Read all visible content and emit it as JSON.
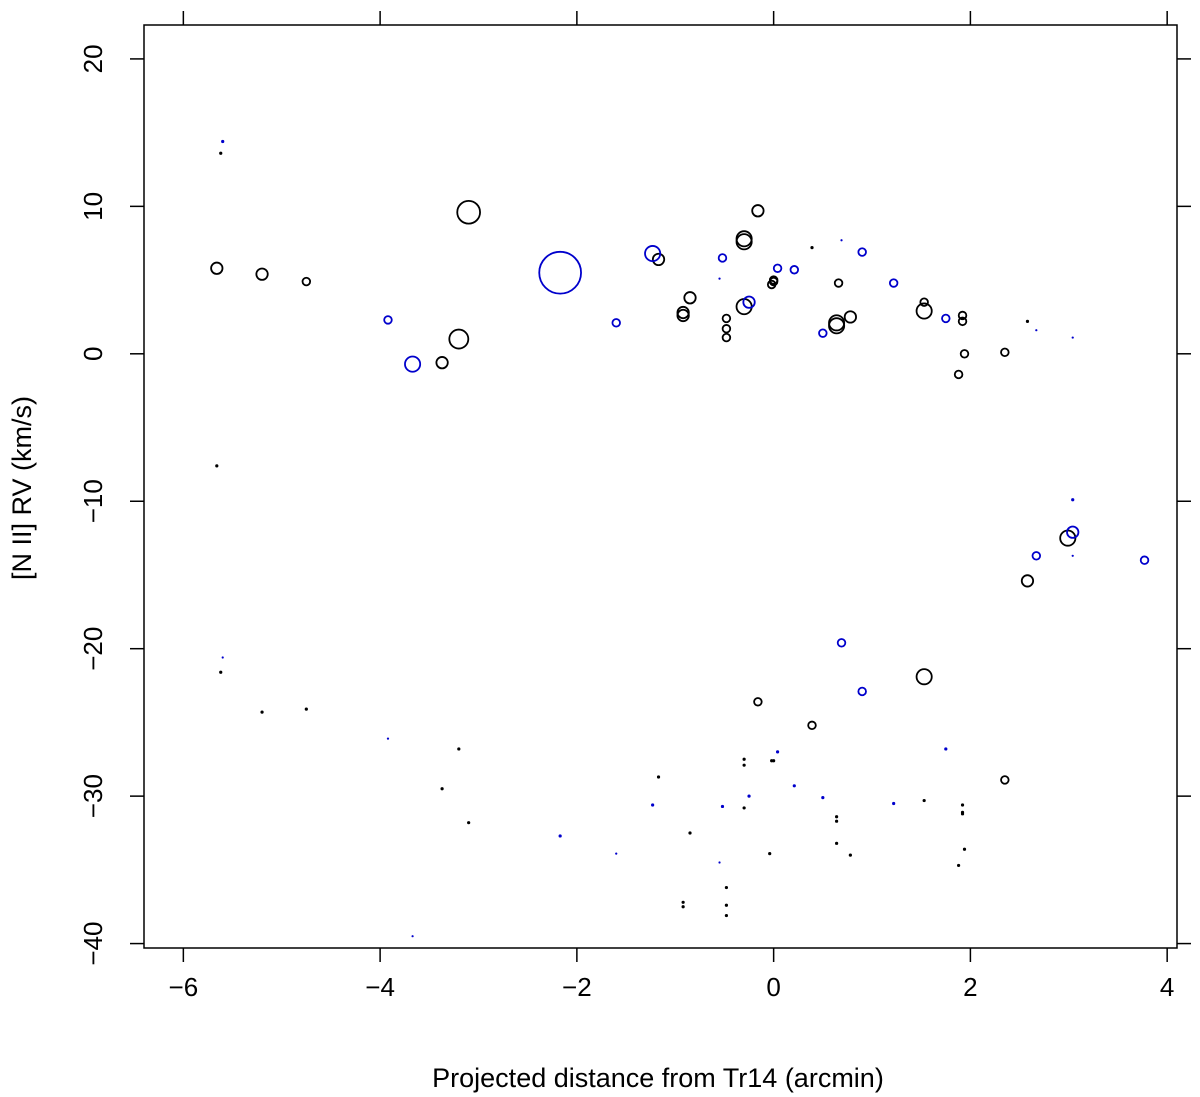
{
  "chart_data": {
    "type": "scatter",
    "title": "",
    "xlabel": "Projected distance from Tr14 (arcmin)",
    "ylabel": "[N II] RV (km/s)",
    "xlim": [
      -6.4,
      4.1
    ],
    "ylim": [
      -40.3,
      22.3
    ],
    "xticks": [
      -6,
      -4,
      -2,
      0,
      2,
      4
    ],
    "yticks": [
      -40,
      -30,
      -20,
      -10,
      0,
      10,
      20
    ],
    "grid": false,
    "legend": "none",
    "series": [
      {
        "color": "#000000",
        "points": [
          [
            -5.62,
            13.6,
            1
          ],
          [
            -5.66,
            5.8,
            3
          ],
          [
            -5.2,
            5.4,
            3
          ],
          [
            -4.75,
            4.9,
            2
          ],
          [
            -5.66,
            -7.6,
            1
          ],
          [
            -5.62,
            -21.6,
            1
          ],
          [
            -5.2,
            -24.3,
            1
          ],
          [
            -4.75,
            -24.1,
            1
          ],
          [
            -3.1,
            9.6,
            6
          ],
          [
            -3.2,
            1.0,
            5
          ],
          [
            -3.37,
            -0.6,
            3
          ],
          [
            -3.2,
            -26.8,
            1
          ],
          [
            -3.37,
            -29.5,
            1
          ],
          [
            -3.1,
            -31.8,
            1
          ],
          [
            -1.17,
            6.4,
            3
          ],
          [
            -0.85,
            3.8,
            3
          ],
          [
            -0.92,
            2.8,
            3
          ],
          [
            -0.92,
            2.6,
            3
          ],
          [
            -0.48,
            2.4,
            2
          ],
          [
            -0.48,
            1.7,
            2
          ],
          [
            -0.48,
            1.1,
            2
          ],
          [
            -0.3,
            7.8,
            4
          ],
          [
            -0.3,
            7.6,
            4
          ],
          [
            -0.3,
            3.2,
            4
          ],
          [
            -0.16,
            9.7,
            3
          ],
          [
            0.0,
            4.9,
            2
          ],
          [
            0.0,
            5.0,
            2
          ],
          [
            -0.02,
            4.7,
            2
          ],
          [
            0.39,
            7.2,
            1
          ],
          [
            0.66,
            4.8,
            2
          ],
          [
            0.64,
            2.1,
            4
          ],
          [
            0.64,
            1.9,
            4
          ],
          [
            0.78,
            2.5,
            3
          ],
          [
            1.53,
            3.5,
            2
          ],
          [
            1.53,
            2.9,
            4
          ],
          [
            1.88,
            -1.4,
            2
          ],
          [
            1.92,
            2.6,
            2
          ],
          [
            1.92,
            2.2,
            2
          ],
          [
            1.94,
            0.0,
            2
          ],
          [
            2.35,
            0.1,
            2
          ],
          [
            2.58,
            2.2,
            1
          ],
          [
            2.58,
            -15.4,
            3
          ],
          [
            2.99,
            -12.5,
            4
          ],
          [
            -1.17,
            -28.7,
            1
          ],
          [
            -0.85,
            -32.5,
            1
          ],
          [
            -0.92,
            -37.2,
            1
          ],
          [
            -0.92,
            -37.5,
            1
          ],
          [
            -0.48,
            -36.2,
            1
          ],
          [
            -0.48,
            -37.4,
            1
          ],
          [
            -0.48,
            -38.1,
            1
          ],
          [
            -0.3,
            -27.5,
            1
          ],
          [
            -0.3,
            -27.9,
            1
          ],
          [
            -0.3,
            -30.8,
            1
          ],
          [
            -0.16,
            -23.6,
            2
          ],
          [
            -0.02,
            -27.6,
            1
          ],
          [
            0.0,
            -27.6,
            1
          ],
          [
            -0.04,
            -33.9,
            1
          ],
          [
            0.39,
            -25.2,
            2
          ],
          [
            0.64,
            -31.4,
            1
          ],
          [
            0.64,
            -31.7,
            1
          ],
          [
            0.64,
            -33.2,
            1
          ],
          [
            0.78,
            -34.0,
            1
          ],
          [
            1.53,
            -21.9,
            4
          ],
          [
            1.53,
            -30.3,
            1
          ],
          [
            1.92,
            -30.6,
            1
          ],
          [
            1.92,
            -31.1,
            1
          ],
          [
            1.92,
            -31.2,
            1
          ],
          [
            1.94,
            -33.6,
            1
          ],
          [
            1.88,
            -34.7,
            1
          ],
          [
            2.35,
            -28.9,
            2
          ]
        ]
      },
      {
        "color": "#0000cc",
        "points": [
          [
            -5.6,
            14.4,
            1
          ],
          [
            -3.92,
            2.3,
            2
          ],
          [
            -3.67,
            -0.7,
            4
          ],
          [
            -2.17,
            5.5,
            11
          ],
          [
            -1.6,
            2.1,
            2
          ],
          [
            -1.23,
            6.8,
            4
          ],
          [
            -0.52,
            6.5,
            2
          ],
          [
            -0.55,
            5.1,
            0.6
          ],
          [
            -0.25,
            3.5,
            3
          ],
          [
            0.04,
            5.8,
            2
          ],
          [
            0.21,
            5.7,
            2
          ],
          [
            0.5,
            1.4,
            2
          ],
          [
            0.69,
            7.7,
            0.6
          ],
          [
            0.9,
            6.9,
            2
          ],
          [
            1.22,
            4.8,
            2
          ],
          [
            1.75,
            2.4,
            2
          ],
          [
            2.67,
            1.6,
            0.6
          ],
          [
            3.04,
            1.1,
            0.6
          ],
          [
            3.04,
            -9.9,
            1
          ],
          [
            3.04,
            -12.1,
            3
          ],
          [
            2.67,
            -13.7,
            2
          ],
          [
            3.77,
            -14.0,
            2
          ],
          [
            3.04,
            -13.7,
            0.6
          ],
          [
            0.69,
            -19.6,
            2
          ],
          [
            0.9,
            -22.9,
            2
          ],
          [
            -5.6,
            -20.6,
            0.6
          ],
          [
            -3.92,
            -26.1,
            0.6
          ],
          [
            -3.67,
            -39.5,
            0.6
          ],
          [
            -2.17,
            -32.7,
            1
          ],
          [
            -1.6,
            -33.9,
            0.6
          ],
          [
            -1.23,
            -30.6,
            1
          ],
          [
            -0.52,
            -30.7,
            1
          ],
          [
            -0.55,
            -34.5,
            0.4
          ],
          [
            -0.25,
            -30.0,
            1
          ],
          [
            0.04,
            -27.0,
            1
          ],
          [
            0.21,
            -29.3,
            1
          ],
          [
            0.5,
            -30.1,
            1
          ],
          [
            1.22,
            -30.5,
            1
          ],
          [
            1.75,
            -26.8,
            1
          ]
        ]
      }
    ]
  }
}
